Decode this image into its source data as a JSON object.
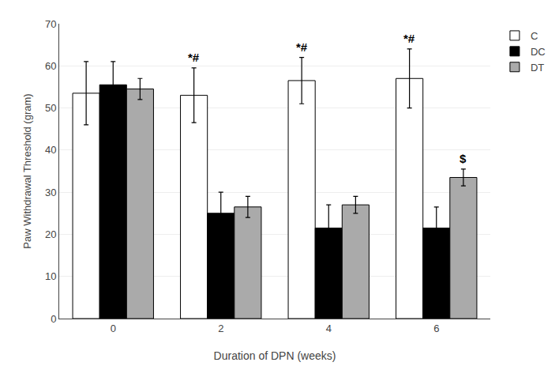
{
  "chart_data": {
    "type": "bar",
    "xlabel": "Duration of DPN (weeks)",
    "ylabel": "Paw Withdrawal Threshold (gram)",
    "categories": [
      "0",
      "2",
      "4",
      "6"
    ],
    "series": [
      {
        "name": "C",
        "color": "white",
        "values": [
          53.5,
          53.0,
          56.5,
          57.0
        ],
        "errors": [
          7.5,
          6.5,
          5.5,
          7.0
        ]
      },
      {
        "name": "DC",
        "color": "black",
        "values": [
          55.5,
          25.0,
          21.5,
          21.5
        ],
        "errors": [
          5.5,
          5.0,
          5.5,
          5.0
        ]
      },
      {
        "name": "DT",
        "color": "#aaaaaa",
        "values": [
          54.5,
          26.5,
          27.0,
          33.5
        ],
        "errors": [
          2.5,
          2.5,
          2.0,
          2.0
        ]
      }
    ],
    "annotations": [
      {
        "text": "*#",
        "series": "C",
        "category": "2"
      },
      {
        "text": "*#",
        "series": "C",
        "category": "4"
      },
      {
        "text": "*#",
        "series": "C",
        "category": "6"
      },
      {
        "text": "$",
        "series": "DT",
        "category": "6"
      }
    ],
    "ylim": [
      0,
      70
    ],
    "yticks": [
      0,
      10,
      20,
      30,
      40,
      50,
      60,
      70
    ],
    "grid": true,
    "legend": "upper right"
  }
}
